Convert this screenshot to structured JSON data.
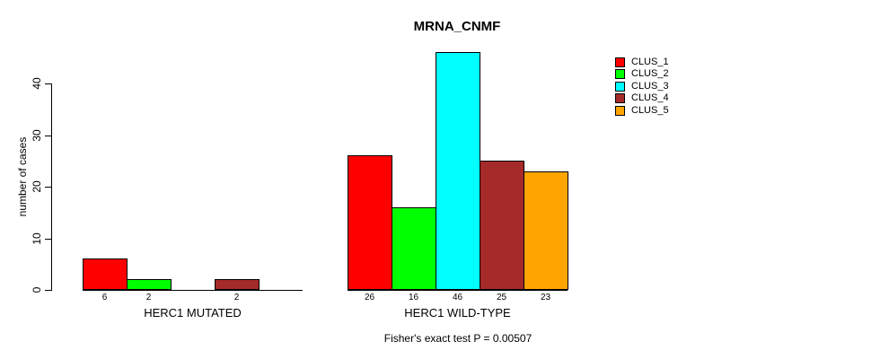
{
  "title": "MRNA_CNMF",
  "y_axis_label": "number of cases",
  "annotation": "Fisher's exact test P = 0.00507",
  "colors": {
    "background": "#ffffff",
    "axis": "#000000",
    "text": "#000000"
  },
  "chart_data": {
    "type": "bar",
    "title": "MRNA_CNMF",
    "xlabel": "",
    "ylabel": "number of cases",
    "ylim": [
      0,
      46
    ],
    "yticks": [
      0,
      10,
      20,
      30,
      40
    ],
    "grid": false,
    "legend_position": "top-right",
    "legend": {
      "entries": [
        {
          "label": "CLUS_1",
          "color": "#ff0000"
        },
        {
          "label": "CLUS_2",
          "color": "#00ff00"
        },
        {
          "label": "CLUS_3",
          "color": "#00ffff"
        },
        {
          "label": "CLUS_4",
          "color": "#a52a2a"
        },
        {
          "label": "CLUS_5",
          "color": "#ffa500"
        }
      ]
    },
    "series": [
      {
        "name": "CLUS_1",
        "color": "#ff0000",
        "values": [
          6,
          26
        ]
      },
      {
        "name": "CLUS_2",
        "color": "#00ff00",
        "values": [
          2,
          16
        ]
      },
      {
        "name": "CLUS_3",
        "color": "#00ffff",
        "values": [
          0,
          46
        ]
      },
      {
        "name": "CLUS_4",
        "color": "#a52a2a",
        "values": [
          2,
          25
        ]
      },
      {
        "name": "CLUS_5",
        "color": "#ffa500",
        "values": [
          0,
          23
        ]
      }
    ],
    "groups": [
      {
        "label": "HERC1 MUTATED",
        "values": [
          6,
          2,
          0,
          2,
          0
        ],
        "bar_labels": [
          "6",
          "2",
          "",
          "2",
          ""
        ]
      },
      {
        "label": "HERC1 WILD-TYPE",
        "values": [
          26,
          16,
          46,
          25,
          23
        ],
        "bar_labels": [
          "26",
          "16",
          "46",
          "25",
          "23"
        ]
      }
    ],
    "zero_bars_hidden": true,
    "annotation": "Fisher's exact test P = 0.00507"
  }
}
